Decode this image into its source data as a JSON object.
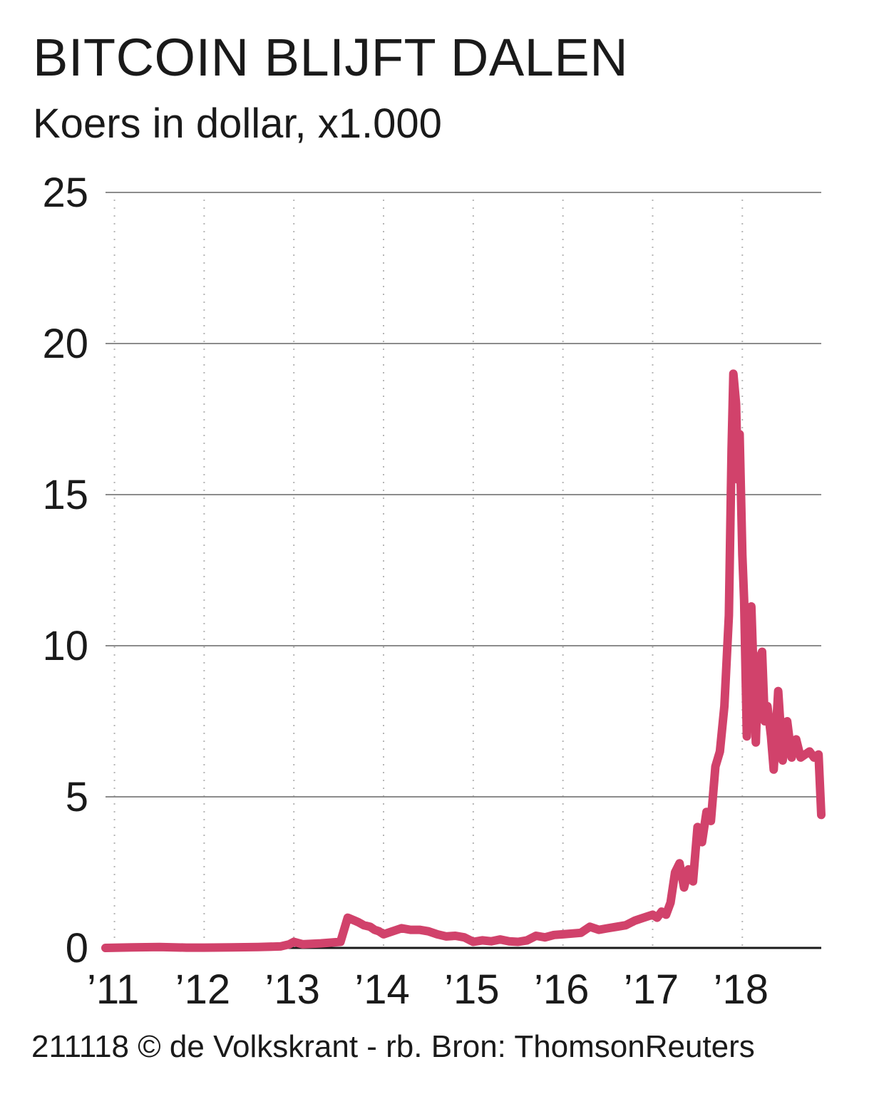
{
  "header": {
    "title": "BITCOIN BLIJFT DALEN",
    "subtitle": "Koers in dollar, x1.000"
  },
  "footer": {
    "credit": "211118 © de Volkskrant - rb. Bron: ThomsonReuters"
  },
  "colors": {
    "line": "#d1426b",
    "gridline": "#8c8c8c",
    "dotted_gridline": "#b5b5b5",
    "baseline": "#1a1a1a",
    "text": "#1a1a1a"
  },
  "chart_data": {
    "type": "line",
    "title": "BITCOIN BLIJFT DALEN",
    "subtitle": "Koers in dollar, x1.000",
    "xlabel": "",
    "ylabel": "",
    "ylim": [
      0,
      25
    ],
    "xlim": [
      2010.9,
      2018.88
    ],
    "y_ticks": [
      0,
      5,
      10,
      15,
      20,
      25
    ],
    "y_tick_labels": [
      "0",
      "5",
      "10",
      "15",
      "20",
      "25"
    ],
    "x_ticks": [
      2011,
      2012,
      2013,
      2014,
      2015,
      2016,
      2017,
      2018
    ],
    "x_tick_labels": [
      "’11",
      "’12",
      "’13",
      "’14",
      "’15",
      "’16",
      "’17",
      "’18"
    ],
    "grid": {
      "horizontal": "solid",
      "vertical": "dotted"
    },
    "legend": "none",
    "series": [
      {
        "x": [
          2010.9,
          2011.2,
          2011.5,
          2011.8,
          2012.0,
          2012.3,
          2012.6,
          2012.85,
          2012.95,
          2013.0,
          2013.1,
          2013.3,
          2013.52,
          2013.6,
          2013.68,
          2013.72,
          2013.78,
          2013.85,
          2013.9,
          2013.95,
          2014.0,
          2014.1,
          2014.2,
          2014.3,
          2014.4,
          2014.5,
          2014.6,
          2014.7,
          2014.8,
          2014.9,
          2015.0,
          2015.1,
          2015.2,
          2015.3,
          2015.4,
          2015.5,
          2015.6,
          2015.7,
          2015.8,
          2015.9,
          2016.0,
          2016.2,
          2016.3,
          2016.4,
          2016.5,
          2016.6,
          2016.7,
          2016.8,
          2016.9,
          2017.0,
          2017.05,
          2017.1,
          2017.15,
          2017.2,
          2017.25,
          2017.3,
          2017.35,
          2017.4,
          2017.45,
          2017.5,
          2017.55,
          2017.6,
          2017.65,
          2017.7,
          2017.75,
          2017.8,
          2017.85,
          2017.88,
          2017.9,
          2017.93,
          2017.95,
          2017.97,
          2018.0,
          2018.02,
          2018.05,
          2018.08,
          2018.1,
          2018.15,
          2018.18,
          2018.22,
          2018.25,
          2018.28,
          2018.32,
          2018.35,
          2018.4,
          2018.45,
          2018.5,
          2018.55,
          2018.6,
          2018.65,
          2018.7,
          2018.75,
          2018.8,
          2018.85,
          2018.88
        ],
        "y": [
          0.0,
          0.02,
          0.03,
          0.01,
          0.01,
          0.02,
          0.03,
          0.05,
          0.12,
          0.2,
          0.12,
          0.15,
          0.2,
          1.0,
          0.9,
          0.85,
          0.75,
          0.7,
          0.6,
          0.55,
          0.45,
          0.55,
          0.65,
          0.6,
          0.6,
          0.55,
          0.45,
          0.38,
          0.4,
          0.35,
          0.2,
          0.25,
          0.22,
          0.28,
          0.22,
          0.2,
          0.25,
          0.4,
          0.35,
          0.43,
          0.45,
          0.5,
          0.7,
          0.6,
          0.65,
          0.7,
          0.75,
          0.9,
          1.0,
          1.1,
          1.0,
          1.2,
          1.1,
          1.5,
          2.5,
          2.8,
          2.0,
          2.6,
          2.2,
          4.0,
          3.5,
          4.5,
          4.2,
          6.0,
          6.5,
          8.0,
          11.0,
          16.5,
          19.0,
          18.0,
          15.5,
          17.0,
          13.0,
          11.5,
          7.0,
          11.0,
          11.3,
          6.8,
          9.5,
          9.8,
          7.5,
          8.0,
          7.0,
          5.9,
          8.5,
          6.2,
          7.5,
          6.3,
          6.9,
          6.3,
          6.4,
          6.5,
          6.3,
          6.4,
          4.4
        ]
      }
    ]
  }
}
